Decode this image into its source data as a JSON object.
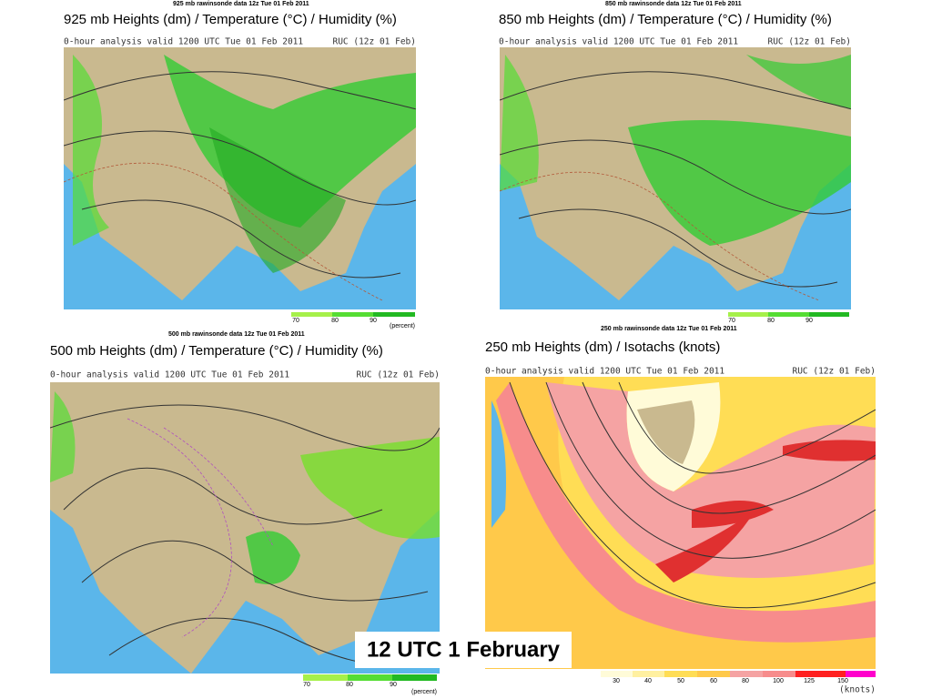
{
  "panels": [
    {
      "header": "925 mb  rawinsonde data 12z Tue 01 Feb 2011",
      "title": "925 mb Heights (dm) / Temperature (°C) / Humidity (%)",
      "analysis": "0-hour analysis valid 1200 UTC Tue 01 Feb 2011",
      "model": "RUC (12z 01 Feb)",
      "legend_ticks": [
        "70",
        "80",
        "90"
      ],
      "legend_unit": "(percent)"
    },
    {
      "header": "850 mb  rawinsonde data 12z Tue 01 Feb 2011",
      "title": "850 mb Heights (dm) / Temperature (°C) / Humidity (%)",
      "analysis": "0-hour analysis valid 1200 UTC Tue 01 Feb 2011",
      "model": "RUC (12z 01 Feb)",
      "legend_ticks": [
        "70",
        "80",
        "90"
      ]
    },
    {
      "header": "500 mb  rawinsonde data 12z Tue 01 Feb 2011",
      "title": "500 mb Heights (dm) / Temperature (°C) / Humidity (%)",
      "analysis": "0-hour analysis valid 1200 UTC Tue 01 Feb 2011",
      "model": "RUC (12z 01 Feb)",
      "legend_ticks": [
        "70",
        "80",
        "90"
      ],
      "legend_unit": "(percent)"
    },
    {
      "header": "250 mb  rawinsonde data 12z Tue 01 Feb 2011",
      "title": "250 mb Heights (dm) / Isotachs (knots)",
      "analysis": "0-hour analysis valid 1200 UTC Tue 01 Feb 2011",
      "model": "RUC (12z 01 Feb)",
      "legend_ticks": [
        "30",
        "40",
        "50",
        "60",
        "80",
        "100",
        "125",
        "150"
      ],
      "legend_unit": "(knots)"
    }
  ],
  "caption": "12 UTC 1 February"
}
